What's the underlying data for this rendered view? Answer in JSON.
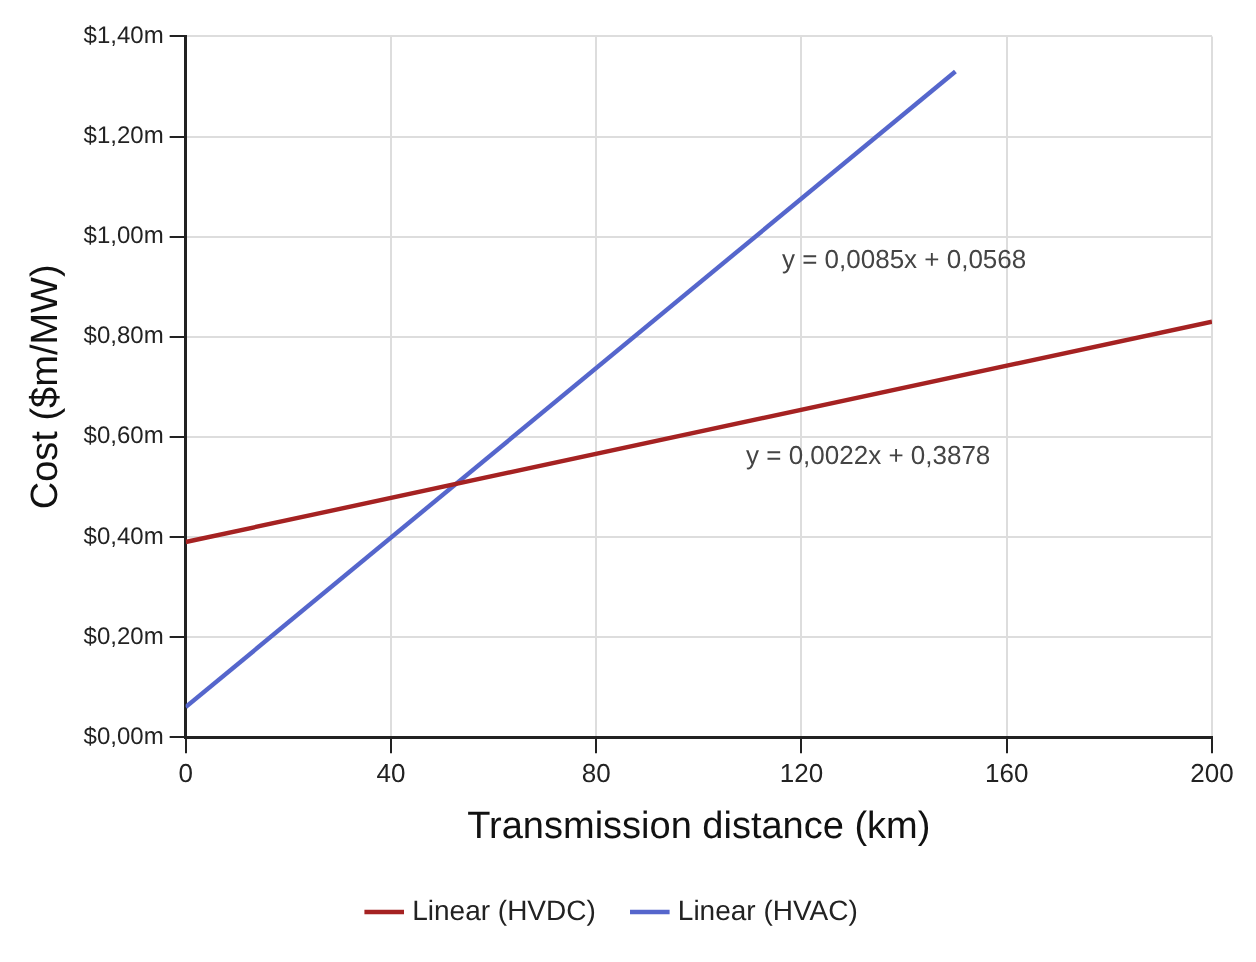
{
  "chart_data": {
    "type": "line",
    "xlabel": "Transmission distance (km)",
    "ylabel": "Cost ($m/MW)",
    "series": [
      {
        "name": "Linear (HVDC)",
        "color": "#a52222",
        "x": [
          0,
          200
        ],
        "values": [
          0.39,
          0.83
        ]
      },
      {
        "name": "Linear (HVAC)",
        "color": "#5566cc",
        "x": [
          0,
          150
        ],
        "values": [
          0.06,
          1.33
        ]
      }
    ],
    "xlim": [
      0,
      200
    ],
    "xticks": [
      0,
      40,
      80,
      120,
      160,
      200
    ],
    "ylim": [
      0,
      1.4
    ],
    "yticks": [
      {
        "value": 0,
        "label": "$0,00m"
      },
      {
        "value": 0.2,
        "label": "$0,20m"
      },
      {
        "value": 0.4,
        "label": "$0,40m"
      },
      {
        "value": 0.6,
        "label": "$0,60m"
      },
      {
        "value": 0.8,
        "label": "$0,80m"
      },
      {
        "value": 1.0,
        "label": "$1,00m"
      },
      {
        "value": 1.2,
        "label": "$1,20m"
      },
      {
        "value": 1.4,
        "label": "$1,40m"
      }
    ],
    "annotations": [
      "y = 0,0085x + 0,0568",
      "y = 0,0022x + 0,3878"
    ],
    "grid": true,
    "legend": "bottom",
    "marker": "none",
    "line_style": "solid"
  }
}
